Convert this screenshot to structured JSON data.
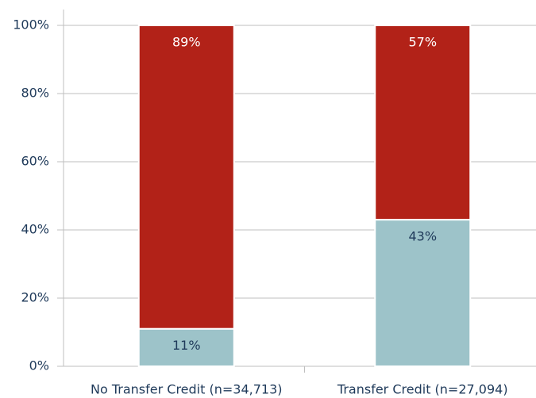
{
  "chart_data": {
    "type": "stacked_bar",
    "categories": [
      "No Transfer Credit (n=34,713)",
      "Transfer Credit (n=27,094)"
    ],
    "series": [
      {
        "color": "#9dc3c9",
        "values": [
          11,
          43
        ],
        "value_labels": [
          "11%",
          "43%"
        ]
      },
      {
        "color": "#b22218",
        "values": [
          89,
          57
        ],
        "value_labels": [
          "89%",
          "57%"
        ]
      }
    ],
    "ylim": [
      0,
      100
    ],
    "yticks": [
      {
        "value": 0,
        "label": "0%"
      },
      {
        "value": 20,
        "label": "20%"
      },
      {
        "value": 40,
        "label": "40%"
      },
      {
        "value": 60,
        "label": "60%"
      },
      {
        "value": 80,
        "label": "80%"
      },
      {
        "value": 100,
        "label": "100%"
      }
    ],
    "grid": true
  }
}
